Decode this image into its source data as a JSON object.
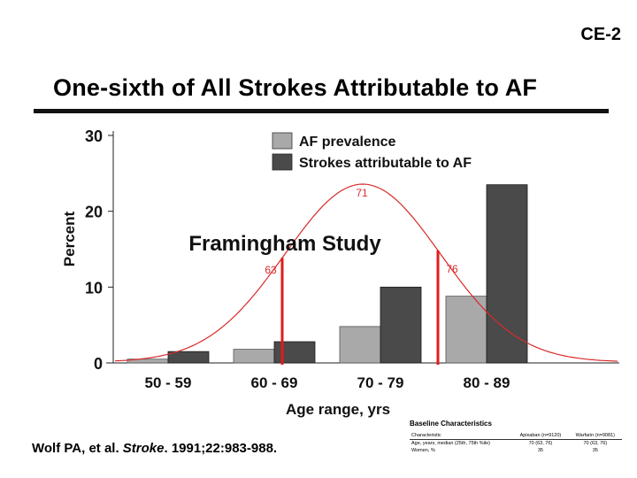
{
  "slide": {
    "id": "CE-2",
    "title": "One-sixth of All Strokes Attributable to AF",
    "citation_authors": "Wolf PA, et al. ",
    "citation_journal": "Stroke",
    "citation_rest": ". 1991;22:983-988."
  },
  "colors": {
    "prevalence": "#a9a9a9",
    "strokes": "#4a4a4a",
    "curve": "#d92b2b",
    "marker": "#e01b1b"
  },
  "chart_data": {
    "type": "bar",
    "title": "",
    "annotation": "Framingham Study",
    "ylabel": "Percent",
    "xlabel": "Age range, yrs",
    "ylim": [
      0,
      30
    ],
    "yticks": [
      0,
      10,
      20,
      30
    ],
    "categories": [
      "50 - 59",
      "60 - 69",
      "70 - 79",
      "80 - 89"
    ],
    "series": [
      {
        "name": "AF prevalence",
        "values": [
          0.5,
          1.8,
          4.8,
          8.8
        ]
      },
      {
        "name": "Strokes attributable to AF",
        "values": [
          1.5,
          2.8,
          10.0,
          23.5
        ]
      }
    ],
    "legend": "top-right",
    "overlay_curve": {
      "type": "normal-distribution",
      "peak_label": "71",
      "left_marker_label": "63",
      "right_marker_label": "76"
    }
  },
  "baseline": {
    "title": "Baseline Characteristics",
    "headers": [
      "Characteristic",
      "Apixaban (n=9120)",
      "Warfarin (n=9081)"
    ],
    "rows": [
      [
        "Age, years, median (25th, 75th %ile)",
        "70 (63, 76)",
        "70 (63, 76)"
      ],
      [
        "Women, %",
        "35",
        "35"
      ]
    ]
  }
}
